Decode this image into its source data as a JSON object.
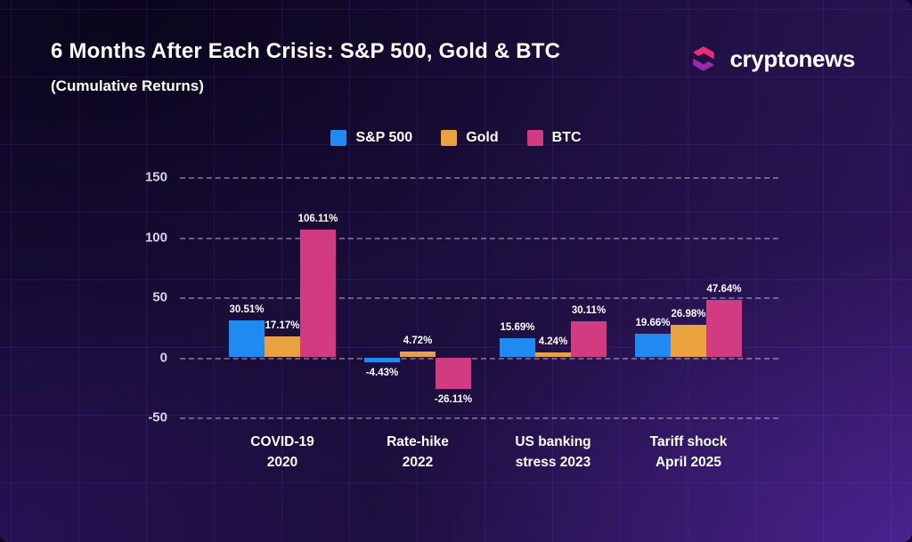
{
  "header": {
    "title": "6 Months After Each Crisis: S&P 500, Gold & BTC",
    "subtitle": "(Cumulative Returns)",
    "brand": "cryptonews"
  },
  "logo_colors": {
    "top": "#ee2a7b",
    "bottom": "#9c27b0"
  },
  "chart_data": {
    "type": "bar",
    "title": "6 Months After Each Crisis: S&P 500, Gold & BTC",
    "subtitle": "(Cumulative Returns)",
    "categories": [
      [
        "COVID-19",
        "2020"
      ],
      [
        "Rate-hike",
        "2022"
      ],
      [
        "US banking",
        "stress 2023"
      ],
      [
        "Tariff shock",
        "April 2025"
      ]
    ],
    "series": [
      {
        "name": "S&P 500",
        "color": "#1e8af2",
        "values": [
          30.51,
          -4.43,
          15.69,
          19.66
        ],
        "labels": [
          "30.51%",
          "-4.43%",
          "15.69%",
          "19.66%"
        ]
      },
      {
        "name": "Gold",
        "color": "#eaa23e",
        "values": [
          17.17,
          4.72,
          4.24,
          26.98
        ],
        "labels": [
          "17.17%",
          "4.72%",
          "4.24%",
          "26.98%"
        ]
      },
      {
        "name": "BTC",
        "color": "#d23b82",
        "values": [
          106.11,
          -26.11,
          30.11,
          47.64
        ],
        "labels": [
          "106.11%",
          "-26.11%",
          "30.11%",
          "47.64%"
        ]
      }
    ],
    "ylim": [
      -50,
      150
    ],
    "yticks": [
      150,
      100,
      50,
      0,
      -50
    ],
    "grid": "dashed horizontal lines",
    "legend_position": "top-center"
  }
}
